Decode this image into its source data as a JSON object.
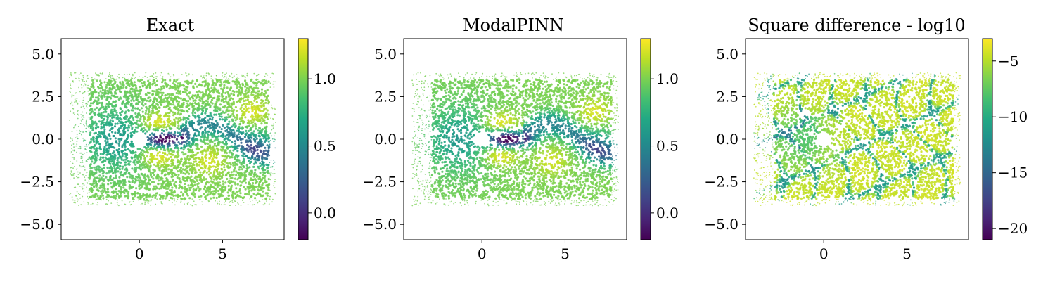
{
  "chart_data": [
    {
      "type": "scatter",
      "title": "Exact",
      "xlabel": "",
      "ylabel": "",
      "xlim": [
        -4.7,
        8.7
      ],
      "ylim": [
        -5.9,
        5.9
      ],
      "xticks": [
        0,
        5
      ],
      "xtick_labels": [
        "0",
        "5"
      ],
      "yticks": [
        5.0,
        2.5,
        0.0,
        -2.5,
        -5.0
      ],
      "ytick_labels": [
        "5.0",
        "2.5",
        "0.0",
        "−2.5",
        "−5.0"
      ],
      "colorbar": {
        "range": [
          -0.2,
          1.3
        ],
        "ticks": [
          0.0,
          0.5,
          1.0
        ],
        "tick_labels": [
          "0.0",
          "0.5",
          "1.0"
        ],
        "colormap": "viridis"
      },
      "field": "flow"
    },
    {
      "type": "scatter",
      "title": "ModalPINN",
      "xlabel": "",
      "ylabel": "",
      "xlim": [
        -4.7,
        8.7
      ],
      "ylim": [
        -5.9,
        5.9
      ],
      "xticks": [
        0,
        5
      ],
      "xtick_labels": [
        "0",
        "5"
      ],
      "yticks": [
        5.0,
        2.5,
        0.0,
        -2.5,
        -5.0
      ],
      "ytick_labels": [
        "5.0",
        "2.5",
        "0.0",
        "−2.5",
        "−5.0"
      ],
      "colorbar": {
        "range": [
          -0.2,
          1.3
        ],
        "ticks": [
          0.0,
          0.5,
          1.0
        ],
        "tick_labels": [
          "0.0",
          "0.5",
          "1.0"
        ],
        "colormap": "viridis"
      },
      "field": "flow"
    },
    {
      "type": "scatter",
      "title": "Square difference - log10",
      "xlabel": "",
      "ylabel": "",
      "xlim": [
        -4.7,
        8.7
      ],
      "ylim": [
        -5.9,
        5.9
      ],
      "xticks": [
        0,
        5
      ],
      "xtick_labels": [
        "0",
        "5"
      ],
      "yticks": [
        5.0,
        2.5,
        0.0,
        -2.5,
        -5.0
      ],
      "ytick_labels": [
        "5.0",
        "2.5",
        "0.0",
        "−2.5",
        "−5.0"
      ],
      "colorbar": {
        "range": [
          -21,
          -3
        ],
        "ticks": [
          -5,
          -10,
          -15,
          -20
        ],
        "tick_labels": [
          "−5",
          "−10",
          "−15",
          "−20"
        ],
        "colormap": "viridis"
      },
      "field": "error"
    }
  ]
}
